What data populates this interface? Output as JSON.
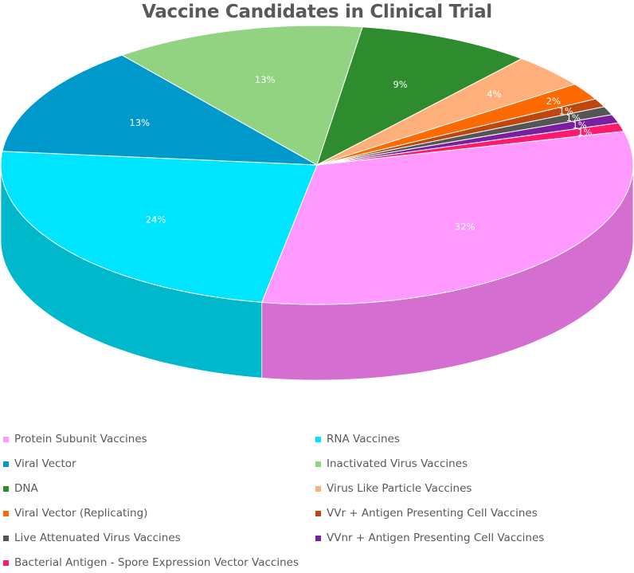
{
  "chart_data": {
    "type": "pie",
    "title": "Vaccine Candidates in Clinical Trial",
    "slices": [
      {
        "name": "Protein Subunit Vaccines",
        "value": 32,
        "label": "32%",
        "color": "#FF99FF",
        "side": "#D56ED1"
      },
      {
        "name": "RNA Vaccines",
        "value": 24,
        "label": "24%",
        "color": "#00E5FF",
        "side": "#00B8CC"
      },
      {
        "name": "Viral Vector",
        "value": 13,
        "label": "13%",
        "color": "#0099CC",
        "side": "#006F94"
      },
      {
        "name": "Inactivated Virus Vaccines",
        "value": 13,
        "label": "13%",
        "color": "#92D382",
        "side": "#3B5A33"
      },
      {
        "name": "DNA",
        "value": 9,
        "label": "9%",
        "color": "#2E8B2E",
        "side": "#0A3008"
      },
      {
        "name": "Virus Like Particle Vaccines",
        "value": 4,
        "label": "4%",
        "color": "#FFB07A",
        "side": "#7A4E2E"
      },
      {
        "name": "Viral Vector (Replicating)",
        "value": 2,
        "label": "2%",
        "color": "#FF6A00",
        "side": "#A33A05"
      },
      {
        "name": "VVr + Antigen Presenting Cell Vaccines",
        "value": 1,
        "label": "1%",
        "color": "#C0460F",
        "side": "#6B2206"
      },
      {
        "name": "Live Attenuated Virus Vaccines",
        "value": 1,
        "label": "1%",
        "color": "#555555",
        "side": "#2E2E2E"
      },
      {
        "name": "VVnr + Antigen Presenting Cell Vaccines",
        "value": 1,
        "label": "1%",
        "color": "#7B1FA2",
        "side": "#4A1060"
      },
      {
        "name": "Bacterial Antigen - Spore Expression Vector Vaccines",
        "value": 1,
        "label": "1%",
        "color": "#FF1A6E",
        "side": "#B0104A"
      }
    ],
    "legend_placement": "bottom"
  }
}
